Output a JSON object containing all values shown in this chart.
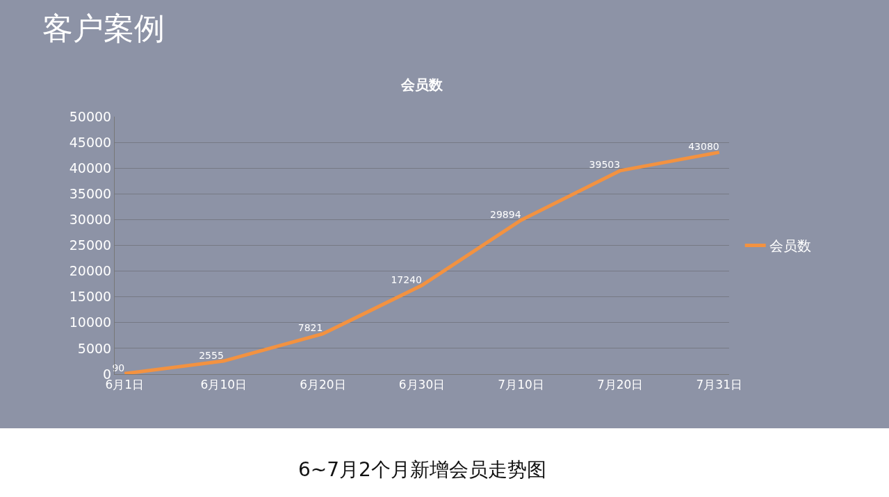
{
  "chart_data": {
    "type": "line",
    "title": "会员数",
    "categories": [
      "6月1日",
      "6月10日",
      "6月20日",
      "6月30日",
      "7月10日",
      "7月20日",
      "7月31日"
    ],
    "series": [
      {
        "name": "会员数",
        "color": "#f39240",
        "values": [
          90,
          2555,
          7821,
          17240,
          29894,
          39503,
          43080
        ]
      }
    ],
    "ylim": [
      0,
      50000
    ],
    "yticks": [
      0,
      5000,
      10000,
      15000,
      20000,
      25000,
      30000,
      35000,
      40000,
      45000,
      50000
    ],
    "grid": "y",
    "legend": "right",
    "data_labels": true,
    "marker": "none",
    "line_style": "solid",
    "annotations": [
      "客户案例",
      "6~7月2个月新增会员走势图"
    ]
  }
}
